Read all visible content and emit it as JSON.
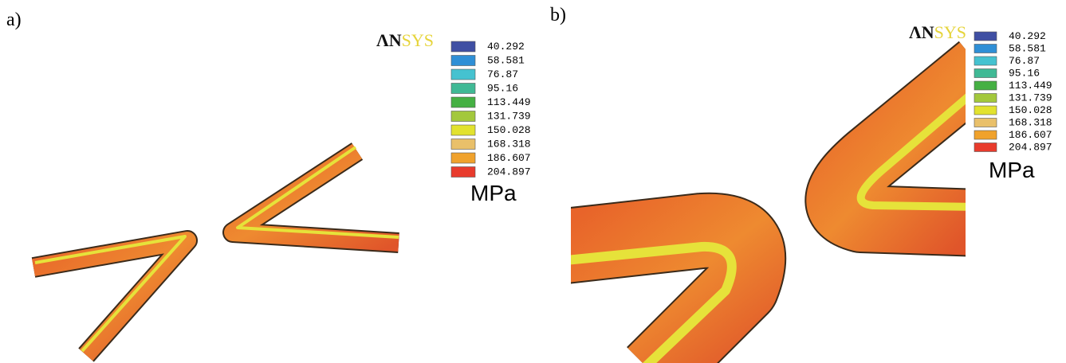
{
  "panels": [
    {
      "label": "a)",
      "logo": {
        "dark": "ΛN",
        "light": "SYS"
      },
      "legend": {
        "unit": "MPa",
        "items": [
          {
            "label": "40.292",
            "color": "#3f4fa3"
          },
          {
            "label": "58.581",
            "color": "#2f8fd6"
          },
          {
            "label": "76.87",
            "color": "#45c2d0"
          },
          {
            "label": "95.16",
            "color": "#40b995"
          },
          {
            "label": "113.449",
            "color": "#45b043"
          },
          {
            "label": "131.739",
            "color": "#a3c83c"
          },
          {
            "label": "150.028",
            "color": "#e2e22e"
          },
          {
            "label": "168.318",
            "color": "#e9c06a"
          },
          {
            "label": "186.607",
            "color": "#f0a22c"
          },
          {
            "label": "204.897",
            "color": "#e83b2c"
          }
        ]
      }
    },
    {
      "label": "b)",
      "logo": {
        "dark": "ΛN",
        "light": "SYS"
      },
      "legend": {
        "unit": "MPa",
        "items": [
          {
            "label": "40.292",
            "color": "#3f4fa3"
          },
          {
            "label": "58.581",
            "color": "#2f8fd6"
          },
          {
            "label": "76.87",
            "color": "#45c2d0"
          },
          {
            "label": "95.16",
            "color": "#40b995"
          },
          {
            "label": "113.449",
            "color": "#45b043"
          },
          {
            "label": "131.739",
            "color": "#a3c83c"
          },
          {
            "label": "150.028",
            "color": "#e2e22e"
          },
          {
            "label": "168.318",
            "color": "#e9c06a"
          },
          {
            "label": "186.607",
            "color": "#f0a22c"
          },
          {
            "label": "204.897",
            "color": "#e83b2c"
          }
        ]
      }
    }
  ]
}
